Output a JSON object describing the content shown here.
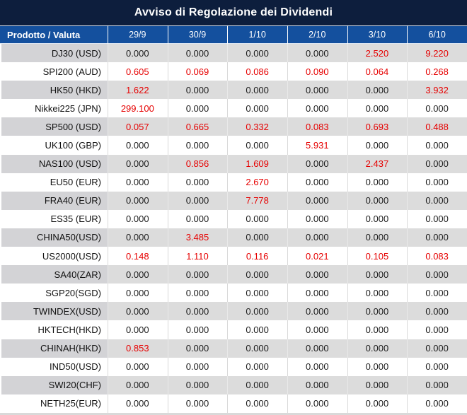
{
  "title": "Avviso di Regolazione dei Dividendi",
  "colors": {
    "title_bar_bg": "#0d1e3d",
    "header_bg": "#14509e",
    "row_gray": "#dcdcdc",
    "product_cell_gray": "#d3d3d6",
    "value_red": "#e60000",
    "value_black": "#1c1c1c"
  },
  "table": {
    "header": {
      "product_col": "Prodotto / Valuta",
      "dates": [
        "29/9",
        "30/9",
        "1/10",
        "2/10",
        "3/10",
        "6/10"
      ]
    },
    "rows": [
      {
        "product": "DJ30 (USD)",
        "values": [
          "0.000",
          "0.000",
          "0.000",
          "0.000",
          "2.520",
          "9.220"
        ],
        "red": [
          false,
          false,
          false,
          false,
          true,
          true
        ]
      },
      {
        "product": "SPI200 (AUD)",
        "values": [
          "0.605",
          "0.069",
          "0.086",
          "0.090",
          "0.064",
          "0.268"
        ],
        "red": [
          true,
          true,
          true,
          true,
          true,
          true
        ]
      },
      {
        "product": "HK50 (HKD)",
        "values": [
          "1.622",
          "0.000",
          "0.000",
          "0.000",
          "0.000",
          "3.932"
        ],
        "red": [
          true,
          false,
          false,
          false,
          false,
          true
        ]
      },
      {
        "product": "Nikkei225 (JPN)",
        "values": [
          "299.100",
          "0.000",
          "0.000",
          "0.000",
          "0.000",
          "0.000"
        ],
        "red": [
          true,
          false,
          false,
          false,
          false,
          false
        ]
      },
      {
        "product": "SP500 (USD)",
        "values": [
          "0.057",
          "0.665",
          "0.332",
          "0.083",
          "0.693",
          "0.488"
        ],
        "red": [
          true,
          true,
          true,
          true,
          true,
          true
        ]
      },
      {
        "product": "UK100 (GBP)",
        "values": [
          "0.000",
          "0.000",
          "0.000",
          "5.931",
          "0.000",
          "0.000"
        ],
        "red": [
          false,
          false,
          false,
          true,
          false,
          false
        ]
      },
      {
        "product": "NAS100 (USD)",
        "values": [
          "0.000",
          "0.856",
          "1.609",
          "0.000",
          "2.437",
          "0.000"
        ],
        "red": [
          false,
          true,
          true,
          false,
          true,
          false
        ]
      },
      {
        "product": "EU50 (EUR)",
        "values": [
          "0.000",
          "0.000",
          "2.670",
          "0.000",
          "0.000",
          "0.000"
        ],
        "red": [
          false,
          false,
          true,
          false,
          false,
          false
        ]
      },
      {
        "product": "FRA40 (EUR)",
        "values": [
          "0.000",
          "0.000",
          "7.778",
          "0.000",
          "0.000",
          "0.000"
        ],
        "red": [
          false,
          false,
          true,
          false,
          false,
          false
        ]
      },
      {
        "product": "ES35 (EUR)",
        "values": [
          "0.000",
          "0.000",
          "0.000",
          "0.000",
          "0.000",
          "0.000"
        ],
        "red": [
          false,
          false,
          false,
          false,
          false,
          false
        ]
      },
      {
        "product": "CHINA50(USD)",
        "values": [
          "0.000",
          "3.485",
          "0.000",
          "0.000",
          "0.000",
          "0.000"
        ],
        "red": [
          false,
          true,
          false,
          false,
          false,
          false
        ]
      },
      {
        "product": "US2000(USD)",
        "values": [
          "0.148",
          "1.110",
          "0.116",
          "0.021",
          "0.105",
          "0.083"
        ],
        "red": [
          true,
          true,
          true,
          true,
          true,
          true
        ]
      },
      {
        "product": "SA40(ZAR)",
        "values": [
          "0.000",
          "0.000",
          "0.000",
          "0.000",
          "0.000",
          "0.000"
        ],
        "red": [
          false,
          false,
          false,
          false,
          false,
          false
        ]
      },
      {
        "product": "SGP20(SGD)",
        "values": [
          "0.000",
          "0.000",
          "0.000",
          "0.000",
          "0.000",
          "0.000"
        ],
        "red": [
          false,
          false,
          false,
          false,
          false,
          false
        ]
      },
      {
        "product": "TWINDEX(USD)",
        "values": [
          "0.000",
          "0.000",
          "0.000",
          "0.000",
          "0.000",
          "0.000"
        ],
        "red": [
          false,
          false,
          false,
          false,
          false,
          false
        ]
      },
      {
        "product": "HKTECH(HKD)",
        "values": [
          "0.000",
          "0.000",
          "0.000",
          "0.000",
          "0.000",
          "0.000"
        ],
        "red": [
          false,
          false,
          false,
          false,
          false,
          false
        ]
      },
      {
        "product": "CHINAH(HKD)",
        "values": [
          "0.853",
          "0.000",
          "0.000",
          "0.000",
          "0.000",
          "0.000"
        ],
        "red": [
          true,
          false,
          false,
          false,
          false,
          false
        ]
      },
      {
        "product": "IND50(USD)",
        "values": [
          "0.000",
          "0.000",
          "0.000",
          "0.000",
          "0.000",
          "0.000"
        ],
        "red": [
          false,
          false,
          false,
          false,
          false,
          false
        ]
      },
      {
        "product": "SWI20(CHF)",
        "values": [
          "0.000",
          "0.000",
          "0.000",
          "0.000",
          "0.000",
          "0.000"
        ],
        "red": [
          false,
          false,
          false,
          false,
          false,
          false
        ]
      },
      {
        "product": "NETH25(EUR)",
        "values": [
          "0.000",
          "0.000",
          "0.000",
          "0.000",
          "0.000",
          "0.000"
        ],
        "red": [
          false,
          false,
          false,
          false,
          false,
          false
        ]
      }
    ]
  }
}
